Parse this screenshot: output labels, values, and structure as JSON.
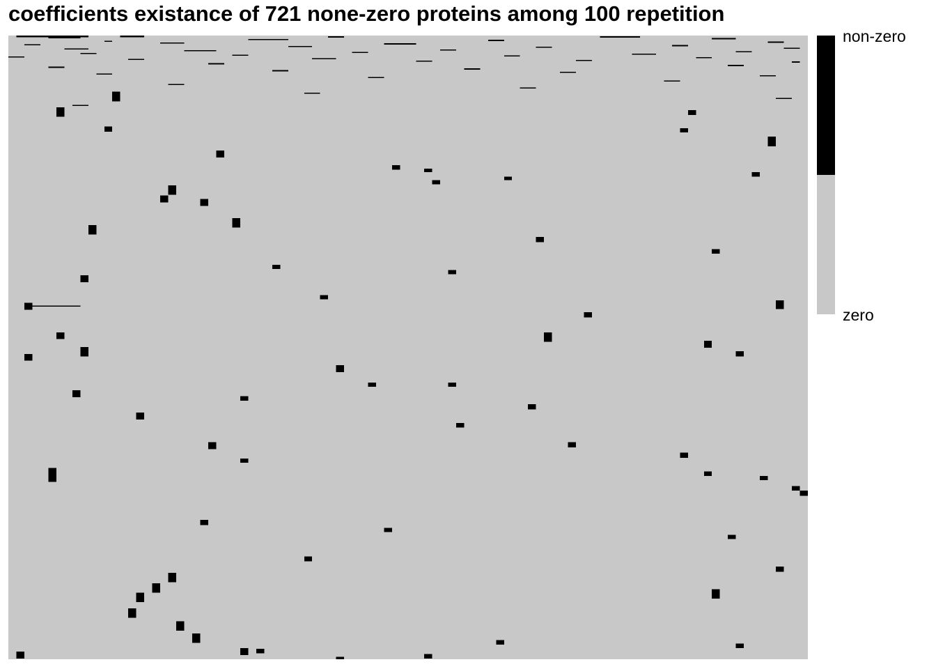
{
  "chart_data": {
    "type": "heatmap",
    "title": "coefficients existance of 721 none-zero proteins among 100 repetition",
    "n_rows": 721,
    "n_cols": 100,
    "legend": {
      "position": "right",
      "entries": [
        {
          "label": "non-zero",
          "color": "#000000"
        },
        {
          "label": "zero",
          "color": "#c8c8c8"
        }
      ]
    },
    "grid": false,
    "values_description_cells": "binary matrix: 1 = non-zero coefficient, 0 = zero coefficient",
    "nonzero_runs": [
      [
        0,
        1,
        2,
        9
      ],
      [
        0,
        14,
        2,
        3
      ],
      [
        1,
        40,
        1,
        2
      ],
      [
        1,
        74,
        1,
        5
      ],
      [
        2,
        5,
        1,
        4
      ],
      [
        3,
        88,
        1,
        3
      ],
      [
        4,
        30,
        1,
        5
      ],
      [
        5,
        60,
        1,
        2
      ],
      [
        6,
        12,
        1,
        1
      ],
      [
        7,
        95,
        1,
        2
      ],
      [
        8,
        19,
        1,
        3
      ],
      [
        9,
        47,
        1,
        4
      ],
      [
        10,
        2,
        1,
        2
      ],
      [
        11,
        83,
        1,
        2
      ],
      [
        12,
        35,
        1,
        3
      ],
      [
        13,
        66,
        1,
        2
      ],
      [
        14,
        97,
        1,
        2
      ],
      [
        15,
        7,
        1,
        3
      ],
      [
        16,
        54,
        1,
        2
      ],
      [
        17,
        22,
        1,
        4
      ],
      [
        18,
        91,
        1,
        2
      ],
      [
        19,
        43,
        1,
        2
      ],
      [
        20,
        9,
        1,
        2
      ],
      [
        21,
        78,
        1,
        3
      ],
      [
        22,
        28,
        1,
        2
      ],
      [
        23,
        62,
        1,
        2
      ],
      [
        24,
        0,
        1,
        2
      ],
      [
        25,
        86,
        1,
        2
      ],
      [
        26,
        38,
        1,
        3
      ],
      [
        27,
        15,
        1,
        2
      ],
      [
        28,
        71,
        1,
        2
      ],
      [
        29,
        51,
        1,
        2
      ],
      [
        30,
        98,
        1,
        1
      ],
      [
        32,
        25,
        1,
        2
      ],
      [
        34,
        90,
        1,
        2
      ],
      [
        36,
        5,
        1,
        2
      ],
      [
        38,
        57,
        1,
        2
      ],
      [
        40,
        33,
        1,
        2
      ],
      [
        42,
        69,
        1,
        2
      ],
      [
        44,
        11,
        1,
        2
      ],
      [
        46,
        94,
        1,
        2
      ],
      [
        48,
        45,
        1,
        2
      ],
      [
        52,
        82,
        1,
        2
      ],
      [
        56,
        20,
        1,
        2
      ],
      [
        60,
        64,
        1,
        2
      ],
      [
        66,
        37,
        1,
        2
      ],
      [
        72,
        96,
        1,
        2
      ],
      [
        80,
        8,
        1,
        2
      ],
      [
        65,
        13,
        11,
        1
      ],
      [
        83,
        6,
        11,
        1
      ],
      [
        105,
        12,
        6,
        1
      ],
      [
        86,
        85,
        6,
        1
      ],
      [
        107,
        84,
        5,
        1
      ],
      [
        117,
        95,
        11,
        1
      ],
      [
        133,
        26,
        8,
        1
      ],
      [
        150,
        48,
        5,
        1
      ],
      [
        154,
        52,
        4,
        1
      ],
      [
        163,
        62,
        4,
        1
      ],
      [
        158,
        93,
        5,
        1
      ],
      [
        167,
        53,
        5,
        1
      ],
      [
        173,
        20,
        11,
        1
      ],
      [
        185,
        19,
        8,
        1
      ],
      [
        189,
        24,
        8,
        1
      ],
      [
        219,
        10,
        11,
        1
      ],
      [
        211,
        28,
        11,
        1
      ],
      [
        233,
        66,
        6,
        1
      ],
      [
        247,
        88,
        5,
        1
      ],
      [
        265,
        33,
        5,
        1
      ],
      [
        271,
        55,
        5,
        1
      ],
      [
        277,
        9,
        8,
        1
      ],
      [
        300,
        39,
        5,
        1
      ],
      [
        306,
        96,
        10,
        1
      ],
      [
        309,
        2,
        8,
        1
      ],
      [
        320,
        72,
        6,
        1
      ],
      [
        312,
        3,
        1,
        6
      ],
      [
        343,
        6,
        8,
        1
      ],
      [
        343,
        67,
        11,
        1
      ],
      [
        353,
        87,
        8,
        1
      ],
      [
        360,
        9,
        11,
        1
      ],
      [
        368,
        2,
        8,
        1
      ],
      [
        365,
        91,
        6,
        1
      ],
      [
        381,
        41,
        8,
        1
      ],
      [
        401,
        45,
        5,
        1
      ],
      [
        401,
        55,
        5,
        1
      ],
      [
        410,
        8,
        8,
        1
      ],
      [
        417,
        29,
        5,
        1
      ],
      [
        436,
        16,
        8,
        1
      ],
      [
        426,
        65,
        6,
        1
      ],
      [
        448,
        56,
        5,
        1
      ],
      [
        470,
        25,
        8,
        1
      ],
      [
        470,
        70,
        6,
        1
      ],
      [
        482,
        84,
        6,
        1
      ],
      [
        489,
        29,
        5,
        1
      ],
      [
        500,
        5,
        16,
        1
      ],
      [
        504,
        87,
        5,
        1
      ],
      [
        509,
        94,
        5,
        1
      ],
      [
        521,
        98,
        5,
        1
      ],
      [
        526,
        99,
        6,
        1
      ],
      [
        560,
        24,
        6,
        1
      ],
      [
        569,
        47,
        5,
        1
      ],
      [
        577,
        90,
        5,
        1
      ],
      [
        602,
        37,
        6,
        1
      ],
      [
        614,
        96,
        6,
        1
      ],
      [
        621,
        20,
        11,
        1
      ],
      [
        633,
        18,
        11,
        1
      ],
      [
        644,
        16,
        11,
        1
      ],
      [
        640,
        88,
        11,
        1
      ],
      [
        662,
        15,
        11,
        1
      ],
      [
        677,
        21,
        11,
        1
      ],
      [
        691,
        23,
        11,
        1
      ],
      [
        708,
        29,
        8,
        1
      ],
      [
        712,
        1,
        8,
        1
      ],
      [
        709,
        31,
        5,
        1
      ],
      [
        718,
        41,
        5,
        1
      ],
      [
        715,
        52,
        5,
        1
      ],
      [
        699,
        61,
        5,
        1
      ],
      [
        703,
        91,
        5,
        1
      ]
    ]
  }
}
